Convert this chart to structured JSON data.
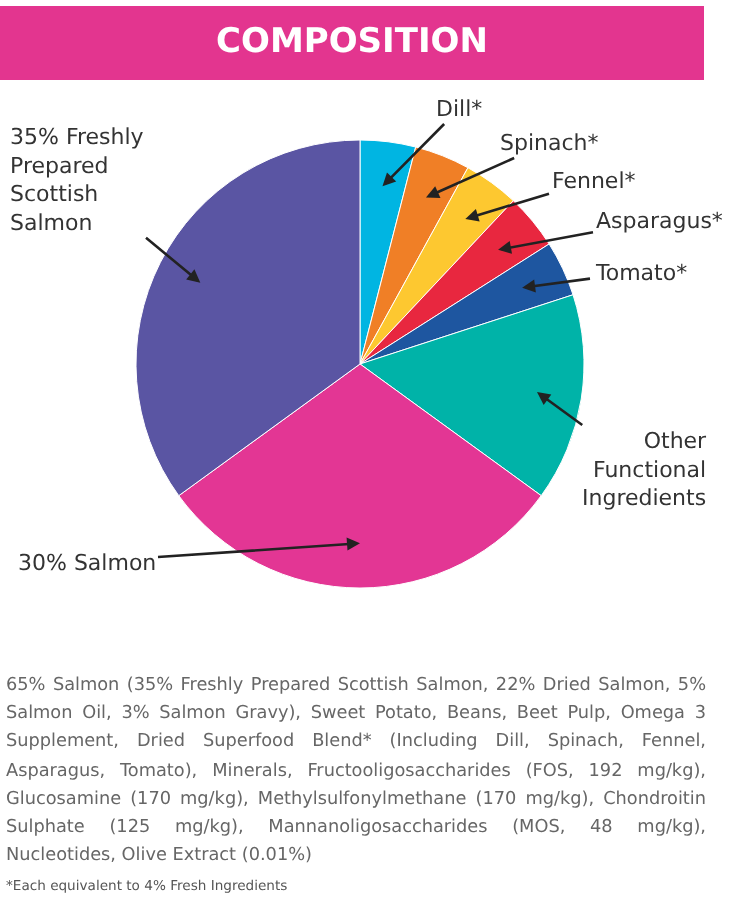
{
  "chart_data": {
    "type": "pie",
    "title": "COMPOSITION",
    "categories": [
      "Dill*",
      "Spinach*",
      "Fennel*",
      "Asparagus*",
      "Tomato*",
      "Other Functional Ingredients",
      "30% Salmon",
      "35% Freshly Prepared Scottish Salmon"
    ],
    "values": [
      4,
      4,
      4,
      4,
      4,
      15,
      30,
      35
    ],
    "colors": [
      "#00b5e2",
      "#f07f26",
      "#fdc830",
      "#e8273f",
      "#1e56a0",
      "#00b3a8",
      "#e33694",
      "#5a55a3"
    ],
    "annotations": [
      "65% Salmon (35% Freshly Prepared Scottish Salmon, 22% Dried Salmon, 5% Salmon Oil, 3% Salmon Gravy), Sweet Potato, Beans, Beet Pulp, Omega 3 Supplement, Dried Superfood Blend* (Including Dill, Spinach, Fennel, Asparagus, Tomato), Minerals, Fructooligosaccharides (FOS, 192 mg/kg), Glucosamine (170 mg/kg), Methylsulfonylmethane (170 mg/kg), Chondroitin Sulphate (125 mg/kg), Mannanoligosaccharides (MOS, 48 mg/kg), Nucleotides, Olive Extract (0.01%)",
      "*Each equivalent to 4% Fresh Ingredients"
    ]
  }
}
